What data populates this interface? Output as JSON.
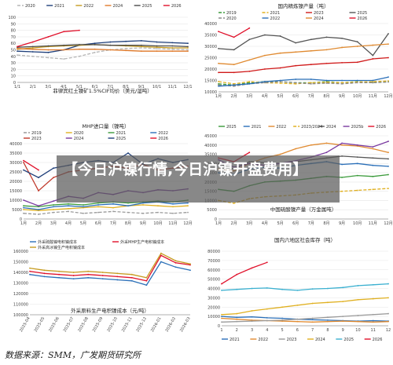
{
  "banner": {
    "headline": "【今日沪镍行情,今日沪镍开盘费用】"
  },
  "source_note": "数据来源：SMM，广发期货研究所",
  "chart_data": [
    {
      "id": "c1",
      "type": "line",
      "title": "菲律宾红土镍矿1.5%CIF均价（美元/湿吨）",
      "categories": [
        "1/1",
        "2/1",
        "3/1",
        "4/1",
        "5/1",
        "6/1",
        "7/1",
        "8/1",
        "9/1",
        "10/1",
        "11/1",
        "12/1"
      ],
      "ylim": [
        0,
        100
      ],
      "yticks": [
        0,
        10,
        20,
        30,
        40,
        50,
        60,
        70,
        80,
        90,
        100
      ],
      "series": [
        {
          "name": "2020",
          "color": "#b5b5b5",
          "dash": "4,2",
          "values": [
            42,
            40,
            38,
            36,
            40,
            46,
            50,
            52,
            53,
            52,
            51,
            50
          ]
        },
        {
          "name": "2021",
          "color": "#1f3f7a",
          "values": [
            48,
            47,
            46,
            50,
            57,
            60,
            62,
            63,
            64,
            62,
            61,
            60
          ]
        },
        {
          "name": "2022",
          "color": "#c69b1e",
          "values": [
            51,
            53,
            55,
            56,
            57,
            58,
            57,
            56,
            55,
            54,
            53,
            53
          ]
        },
        {
          "name": "2024",
          "color": "#e07a2a",
          "values": [
            52,
            51,
            50,
            50,
            51,
            51,
            50,
            49,
            48,
            48,
            48,
            48
          ]
        },
        {
          "name": "2025",
          "color": "#4a4a4a",
          "values": [
            54,
            55,
            56,
            57,
            58,
            58,
            57,
            57,
            57,
            56,
            56,
            55
          ]
        },
        {
          "name": "2026",
          "color": "#e0102a",
          "values": [
            55,
            62,
            70,
            78,
            80,
            null,
            null,
            null,
            null,
            null,
            null,
            null
          ]
        }
      ]
    },
    {
      "id": "c2",
      "type": "line",
      "title": "国内精炼镍产量（吨）",
      "categories": [
        "1月",
        "2月",
        "3月",
        "4月",
        "5月",
        "6月",
        "7月",
        "8月",
        "9月",
        "10月",
        "11月",
        "12月"
      ],
      "ylim": [
        10000,
        40000
      ],
      "yticks": [
        10000,
        15000,
        20000,
        25000,
        30000,
        35000,
        40000
      ],
      "series": [
        {
          "name": "2019",
          "color": "#3a9a3a",
          "dash": "4,2",
          "values": [
            13500,
            13000,
            14000,
            14500,
            14500,
            14000,
            14000,
            14500,
            14000,
            14500,
            14000,
            14500
          ]
        },
        {
          "name": "2021",
          "color": "#e0b020",
          "dash": "4,2",
          "values": [
            14500,
            13500,
            14500,
            14000,
            13800,
            13500,
            14000,
            14200,
            14000,
            14300,
            14500,
            14800
          ]
        },
        {
          "name": "2023",
          "color": "#d01a1a",
          "values": [
            18500,
            18500,
            19000,
            20000,
            20500,
            21500,
            22000,
            22500,
            22800,
            23000,
            24500,
            25000
          ]
        },
        {
          "name": "2025",
          "color": "#555555",
          "values": [
            29000,
            28500,
            33000,
            35000,
            34500,
            31500,
            33000,
            34000,
            33500,
            32000,
            26000,
            35500
          ]
        },
        {
          "name": "2020",
          "color": "#8a8a8a",
          "dash": "4,2",
          "values": [
            13000,
            12500,
            13500,
            14000,
            14500,
            14000,
            13500,
            13800,
            13500,
            14000,
            14000,
            14300
          ]
        },
        {
          "name": "2022",
          "color": "#2a6fb8",
          "values": [
            12500,
            13000,
            13500,
            14500,
            15000,
            15500,
            15500,
            15000,
            15000,
            15000,
            15000,
            16500
          ]
        },
        {
          "name": "2024",
          "color": "#e08a30",
          "values": [
            22500,
            22000,
            24000,
            26000,
            27000,
            27500,
            28000,
            28500,
            29500,
            30000,
            30500,
            31000
          ]
        },
        {
          "name": "2026",
          "color": "#e0102a",
          "values": [
            36500,
            34000,
            38000,
            null,
            null,
            null,
            null,
            null,
            null,
            null,
            null,
            null
          ]
        }
      ]
    },
    {
      "id": "c3",
      "type": "line",
      "title": "MHP进口量（镍吨）",
      "categories": [
        "1月",
        "2月",
        "3月",
        "4月",
        "5月",
        "6月",
        "7月",
        "8月",
        "9月",
        "10月",
        "11月",
        "12月"
      ],
      "ylim": [
        0,
        40000
      ],
      "yticks": [
        0,
        5000,
        10000,
        15000,
        20000,
        25000,
        30000,
        35000,
        40000
      ],
      "series": [
        {
          "name": "2019",
          "color": "#9a9a9a",
          "dash": "4,2",
          "values": [
            3000,
            2500,
            3500,
            4000,
            3000,
            3500,
            4000,
            3500,
            3000,
            3500,
            3000,
            3500
          ]
        },
        {
          "name": "2020",
          "color": "#e0b020",
          "values": [
            5000,
            4500,
            5000,
            5500,
            6000,
            6500,
            6000,
            7000,
            7500,
            7000,
            6500,
            7000
          ]
        },
        {
          "name": "2021",
          "color": "#3a9a3a",
          "values": [
            7000,
            6500,
            7500,
            8000,
            7500,
            8500,
            9000,
            8500,
            9000,
            9500,
            9000,
            10000
          ]
        },
        {
          "name": "2022",
          "color": "#2a6fb8",
          "values": [
            6000,
            5000,
            6500,
            7000,
            6500,
            7500,
            8000,
            7000,
            8500,
            9000,
            8000,
            8500
          ]
        },
        {
          "name": "2023",
          "color": "#c0392b",
          "values": [
            30000,
            15000,
            22000,
            25000,
            26000,
            27000,
            28000,
            27000,
            29000,
            26000,
            27000,
            28000
          ]
        },
        {
          "name": "2024",
          "color": "#7a3aa0",
          "values": [
            10000,
            7000,
            9500,
            12000,
            11000,
            14000,
            13000,
            15000,
            14000,
            15500,
            15000,
            16000
          ]
        },
        {
          "name": "2025",
          "color": "#1f3f7a",
          "values": [
            26000,
            22000,
            27000,
            28500,
            30000,
            31000,
            30000,
            35000,
            29000,
            32000,
            30000,
            31500
          ]
        },
        {
          "name": "2026",
          "color": "#e0102a",
          "values": [
            31000,
            26000,
            null,
            null,
            null,
            null,
            null,
            null,
            null,
            null,
            null,
            null
          ]
        }
      ]
    },
    {
      "id": "c4",
      "type": "line",
      "title": "中国硫酸镍产量（万金属吨）",
      "categories": [
        "1月",
        "2月",
        "3月",
        "4月",
        "5月",
        "6月",
        "7月",
        "8月",
        "9月",
        "10月",
        "11月",
        "12月"
      ],
      "ylim": [
        0,
        45000
      ],
      "yticks": [
        0,
        5000,
        10000,
        15000,
        20000,
        25000,
        30000,
        35000,
        40000,
        45000
      ],
      "series": [
        {
          "name": "2025",
          "color": "#3a9a3a",
          "values": [
            16000,
            15000,
            18000,
            20000,
            20500,
            21000,
            22000,
            23000,
            22500,
            23500,
            23000,
            24000
          ]
        },
        {
          "name": "2021",
          "color": "#2a6fb8",
          "values": [
            25000,
            24000,
            27000,
            28000,
            27500,
            29000,
            30000,
            31000,
            29500,
            30000,
            29000,
            28500
          ]
        },
        {
          "name": "2022",
          "color": "#e08a30",
          "values": [
            27000,
            26000,
            30000,
            33000,
            35000,
            38000,
            40000,
            41000,
            40000,
            39500,
            38000,
            36000
          ]
        },
        {
          "name": "2023/2024",
          "color": "#e0b020",
          "dash": "4,2",
          "values": [
            10000,
            8500,
            11000,
            12000,
            12500,
            13000,
            14000,
            14500,
            15000,
            15500,
            16000,
            16500
          ]
        },
        {
          "name": "2024",
          "color": "#555555",
          "values": [
            30000,
            27000,
            31000,
            30500,
            30000,
            31000,
            32000,
            33000,
            34000,
            33500,
            33000,
            32500
          ]
        },
        {
          "name": "2025b",
          "color": "#7a3aa0",
          "values": [
            32000,
            28000,
            30000,
            29000,
            30000,
            31500,
            33500,
            36000,
            41000,
            40000,
            39000,
            42000
          ]
        },
        {
          "name": "2026",
          "color": "#e0102a",
          "values": [
            33000,
            31000,
            36000,
            null,
            null,
            null,
            null,
            null,
            null,
            null,
            null,
            null
          ]
        }
      ]
    },
    {
      "id": "c5",
      "type": "line",
      "title": "外采原料生产电积镍成本（元/吨）",
      "categories": [
        "2025-04",
        "2025-05",
        "2025-06",
        "2025-07",
        "2025-08",
        "2025-09",
        "2025-10",
        "2025-11",
        "2025-12",
        "2026-01",
        "2026-02",
        "2026-03"
      ],
      "ylim": [
        100000,
        160000
      ],
      "yticks": [
        100000,
        110000,
        120000,
        130000,
        140000,
        150000,
        160000
      ],
      "series": [
        {
          "name": "外采硫酸镍电积镍成本",
          "color": "#2a6fb8",
          "values": [
            138000,
            136000,
            135000,
            134000,
            135000,
            134000,
            133000,
            132000,
            128000,
            150000,
            145000,
            142000
          ]
        },
        {
          "name": "外采MHP生产电积镍成本",
          "color": "#e0102a",
          "values": [
            141000,
            139000,
            138000,
            137000,
            138000,
            137000,
            136000,
            135000,
            132000,
            156000,
            149000,
            147000
          ]
        },
        {
          "name": "外采高冰镍生产电积镍成本",
          "color": "#c69b1e",
          "values": [
            144000,
            142000,
            141000,
            140000,
            141000,
            140000,
            139000,
            138000,
            135000,
            158000,
            151000,
            148000
          ]
        }
      ]
    },
    {
      "id": "c6",
      "type": "line",
      "title": "国内六地区社会库存（吨）",
      "categories": [
        "1",
        "2",
        "3",
        "4",
        "5",
        "6",
        "7",
        "8",
        "9",
        "10",
        "11",
        "12"
      ],
      "ylim": [
        0,
        80000
      ],
      "yticks": [
        0,
        10000,
        20000,
        30000,
        40000,
        50000,
        60000,
        70000,
        80000
      ],
      "series": [
        {
          "name": "2021",
          "color": "#2a6fb8",
          "values": [
            10000,
            9000,
            9500,
            8500,
            8000,
            7000,
            6500,
            6000,
            5500,
            5000,
            5500,
            5000
          ]
        },
        {
          "name": "2022",
          "color": "#e08a30",
          "values": [
            8000,
            7000,
            6000,
            5500,
            5000,
            4500,
            4000,
            4500,
            5000,
            4500,
            4000,
            4500
          ]
        },
        {
          "name": "2023",
          "color": "#9a9a9a",
          "values": [
            4000,
            4500,
            5000,
            5500,
            6000,
            7000,
            8000,
            9000,
            10000,
            11000,
            12000,
            13000
          ]
        },
        {
          "name": "2024",
          "color": "#e0b020",
          "values": [
            12000,
            13000,
            16000,
            18000,
            20000,
            22000,
            24000,
            25000,
            26000,
            28000,
            29000,
            30000
          ]
        },
        {
          "name": "2025",
          "color": "#3ab0d0",
          "values": [
            38000,
            39000,
            40000,
            40500,
            39000,
            38000,
            39500,
            40000,
            41000,
            43000,
            44000,
            45000
          ]
        },
        {
          "name": "2026",
          "color": "#e0102a",
          "values": [
            45000,
            55000,
            62000,
            68000,
            null,
            null,
            null,
            null,
            null,
            null,
            null,
            null
          ]
        }
      ]
    }
  ]
}
